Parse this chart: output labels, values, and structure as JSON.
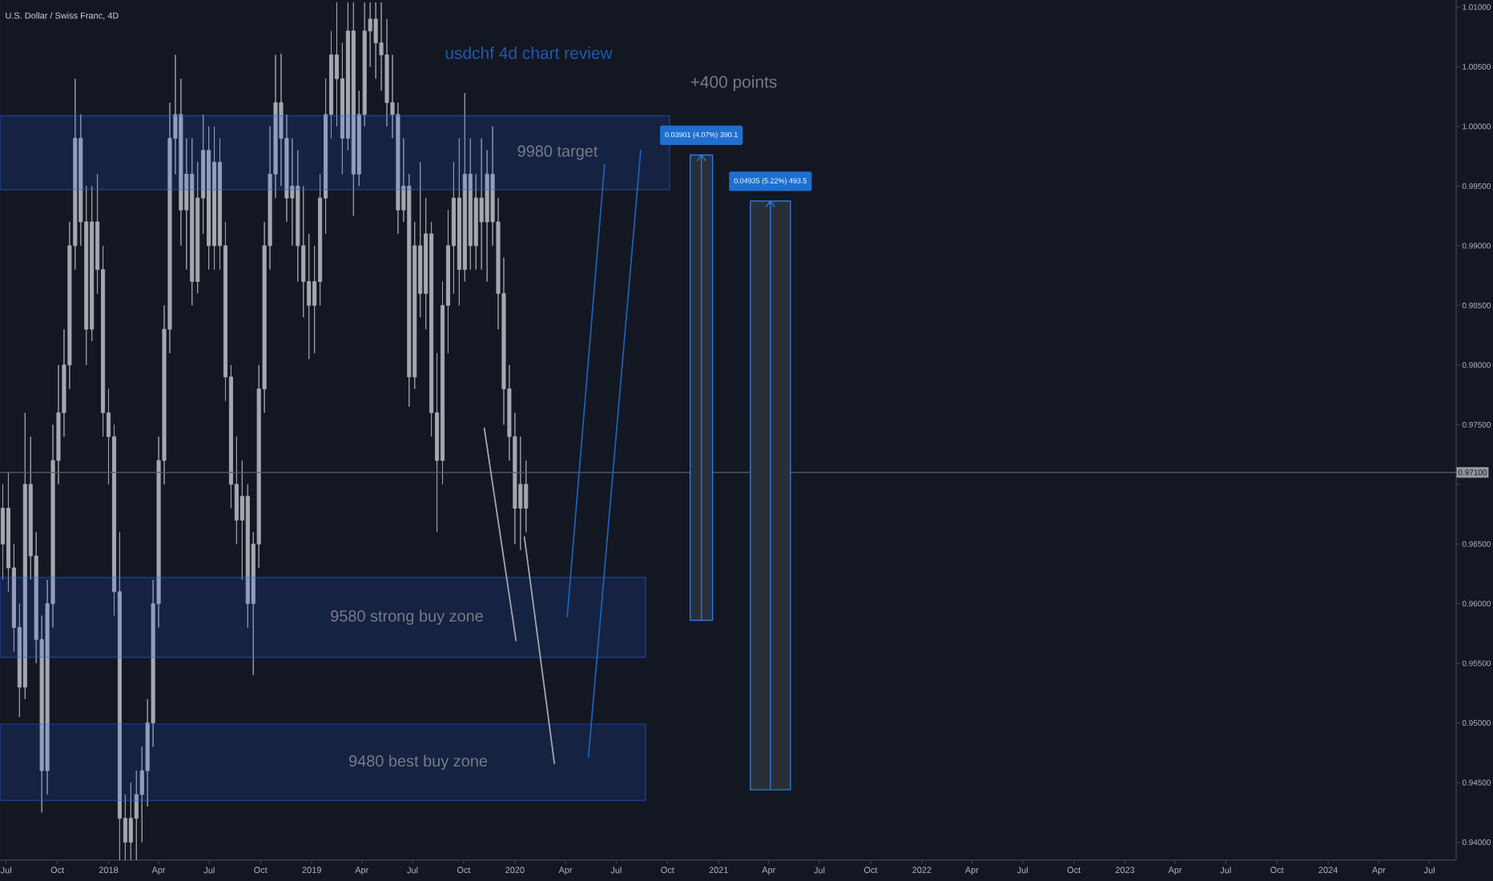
{
  "chart_data": {
    "type": "candlestick",
    "title": "U.S. Dollar / Swiss Franc, 4D",
    "annotations": [
      "usdchf 4d chart review",
      "+400 points"
    ],
    "xlim": [
      "2017-06-20",
      "2024-08-18"
    ],
    "xticks": [
      {
        "value": "2017-07-01",
        "label": "Jul"
      },
      {
        "value": "2017-10-01",
        "label": "Oct"
      },
      {
        "value": "2018-01-01",
        "label": "2018"
      },
      {
        "value": "2018-04-01",
        "label": "Apr"
      },
      {
        "value": "2018-07-01",
        "label": "Jul"
      },
      {
        "value": "2018-10-01",
        "label": "Oct"
      },
      {
        "value": "2019-01-01",
        "label": "2019"
      },
      {
        "value": "2019-04-01",
        "label": "Apr"
      },
      {
        "value": "2019-07-01",
        "label": "Jul"
      },
      {
        "value": "2019-10-01",
        "label": "Oct"
      },
      {
        "value": "2020-01-01",
        "label": "2020"
      },
      {
        "value": "2020-04-01",
        "label": "Apr"
      },
      {
        "value": "2020-07-01",
        "label": "Jul"
      },
      {
        "value": "2020-10-01",
        "label": "Oct"
      },
      {
        "value": "2021-01-01",
        "label": "2021"
      },
      {
        "value": "2021-04-01",
        "label": "Apr"
      },
      {
        "value": "2021-07-01",
        "label": "Jul"
      },
      {
        "value": "2021-10-01",
        "label": "Oct"
      },
      {
        "value": "2022-01-01",
        "label": "2022"
      },
      {
        "value": "2022-04-01",
        "label": "Apr"
      },
      {
        "value": "2022-07-01",
        "label": "Jul"
      },
      {
        "value": "2022-10-01",
        "label": "Oct"
      },
      {
        "value": "2023-01-01",
        "label": "2023"
      },
      {
        "value": "2023-04-01",
        "label": "Apr"
      },
      {
        "value": "2023-07-01",
        "label": "Jul"
      },
      {
        "value": "2023-10-01",
        "label": "Oct"
      },
      {
        "value": "2024-01-01",
        "label": "2024"
      },
      {
        "value": "2024-04-01",
        "label": "Apr"
      },
      {
        "value": "2024-07-01",
        "label": "Jul"
      }
    ],
    "ylim": [
      0.9385,
      1.0106
    ],
    "yticks": [
      {
        "value": 0.94,
        "label": "0.94000"
      },
      {
        "value": 0.945,
        "label": "0.94500"
      },
      {
        "value": 0.95,
        "label": "0.95000"
      },
      {
        "value": 0.955,
        "label": "0.95500"
      },
      {
        "value": 0.96,
        "label": "0.96000"
      },
      {
        "value": 0.965,
        "label": "0.96500"
      },
      {
        "value": 0.97,
        "label": null
      },
      {
        "value": 0.975,
        "label": "0.97500"
      },
      {
        "value": 0.98,
        "label": "0.98000"
      },
      {
        "value": 0.985,
        "label": "0.98500"
      },
      {
        "value": 0.99,
        "label": "0.99000"
      },
      {
        "value": 0.995,
        "label": "0.99500"
      },
      {
        "value": 1.0,
        "label": "1.00000"
      },
      {
        "value": 1.005,
        "label": "1.00500"
      },
      {
        "value": 1.01,
        "label": "1.01000"
      }
    ],
    "ref_lines": [
      {
        "axis": "y",
        "value": 0.971,
        "label": "0.97100",
        "color": "#5d606b"
      }
    ],
    "bands": [
      {
        "axis": "y",
        "from": 0.9947,
        "to": 1.0009,
        "label": "9980 target",
        "color": "#2962ff"
      },
      {
        "axis": "y",
        "from": 0.9555,
        "to": 0.9622,
        "label": "9580 strong buy zone",
        "color": "#2962ff"
      },
      {
        "axis": "y",
        "from": 0.9435,
        "to": 0.9499,
        "label": "9480 best buy zone",
        "color": "#2962ff"
      }
    ],
    "series": [
      {
        "color": "#a5a8b1",
        "x": [
          "2017-06-25",
          "2017-07-05",
          "2017-07-15",
          "2017-07-25",
          "2017-08-04",
          "2017-08-14",
          "2017-08-24",
          "2017-09-03",
          "2017-09-13",
          "2017-09-23",
          "2017-10-03",
          "2017-10-13",
          "2017-10-23",
          "2017-11-02",
          "2017-11-12",
          "2017-11-22",
          "2017-12-02",
          "2017-12-12",
          "2017-12-22",
          "2018-01-01",
          "2018-01-11",
          "2018-01-21",
          "2018-01-31",
          "2018-02-10",
          "2018-02-20",
          "2018-03-02",
          "2018-03-12",
          "2018-03-22",
          "2018-04-01",
          "2018-04-11",
          "2018-04-21",
          "2018-05-01",
          "2018-05-11",
          "2018-05-21",
          "2018-05-31",
          "2018-06-10",
          "2018-06-20",
          "2018-06-30",
          "2018-07-10",
          "2018-07-20",
          "2018-07-30",
          "2018-08-09",
          "2018-08-19",
          "2018-08-29",
          "2018-09-08",
          "2018-09-18",
          "2018-09-28",
          "2018-10-08",
          "2018-10-18",
          "2018-10-28",
          "2018-11-07",
          "2018-11-17",
          "2018-11-27",
          "2018-12-07",
          "2018-12-17",
          "2018-12-27",
          "2019-01-06",
          "2019-01-16",
          "2019-01-26",
          "2019-02-05",
          "2019-02-15",
          "2019-02-25",
          "2019-03-07",
          "2019-03-17",
          "2019-03-27",
          "2019-04-06",
          "2019-04-16",
          "2019-04-26",
          "2019-05-06",
          "2019-05-16",
          "2019-05-26",
          "2019-06-05",
          "2019-06-15",
          "2019-06-25",
          "2019-07-05",
          "2019-07-15",
          "2019-07-25",
          "2019-08-04",
          "2019-08-14",
          "2019-08-24",
          "2019-09-03",
          "2019-09-13",
          "2019-09-23",
          "2019-10-03",
          "2019-10-13",
          "2019-10-23",
          "2019-11-02",
          "2019-11-12",
          "2019-11-22",
          "2019-12-02",
          "2019-12-12",
          "2019-12-22",
          "2020-01-01",
          "2020-01-11",
          "2020-01-21"
        ],
        "ohlc": [
          [
            0.965,
            0.97,
            0.962,
            0.968
          ],
          [
            0.968,
            0.971,
            0.961,
            0.963
          ],
          [
            0.963,
            0.965,
            0.956,
            0.958
          ],
          [
            0.958,
            0.96,
            0.9505,
            0.953
          ],
          [
            0.953,
            0.976,
            0.952,
            0.97
          ],
          [
            0.97,
            0.974,
            0.962,
            0.964
          ],
          [
            0.964,
            0.966,
            0.955,
            0.957
          ],
          [
            0.957,
            0.959,
            0.9425,
            0.946
          ],
          [
            0.946,
            0.962,
            0.944,
            0.96
          ],
          [
            0.96,
            0.975,
            0.958,
            0.972
          ],
          [
            0.972,
            0.98,
            0.97,
            0.976
          ],
          [
            0.976,
            0.983,
            0.974,
            0.98
          ],
          [
            0.98,
            0.992,
            0.978,
            0.99
          ],
          [
            0.99,
            1.004,
            0.988,
            0.999
          ],
          [
            0.999,
            1.001,
            0.99,
            0.992
          ],
          [
            0.992,
            0.995,
            0.98,
            0.983
          ],
          [
            0.983,
            0.995,
            0.982,
            0.992
          ],
          [
            0.992,
            0.996,
            0.986,
            0.988
          ],
          [
            0.988,
            0.99,
            0.974,
            0.976
          ],
          [
            0.976,
            0.978,
            0.97,
            0.974
          ],
          [
            0.974,
            0.975,
            0.959,
            0.961
          ],
          [
            0.961,
            0.966,
            0.9385,
            0.942
          ],
          [
            0.942,
            0.944,
            0.9385,
            0.94
          ],
          [
            0.94,
            0.945,
            0.9385,
            0.942
          ],
          [
            0.942,
            0.946,
            0.9385,
            0.944
          ],
          [
            0.944,
            0.948,
            0.94,
            0.946
          ],
          [
            0.946,
            0.952,
            0.943,
            0.95
          ],
          [
            0.95,
            0.962,
            0.948,
            0.96
          ],
          [
            0.96,
            0.974,
            0.958,
            0.972
          ],
          [
            0.972,
            0.985,
            0.97,
            0.983
          ],
          [
            0.983,
            1.002,
            0.981,
            0.999
          ],
          [
            0.999,
            1.006,
            0.996,
            1.001
          ],
          [
            1.001,
            1.004,
            0.99,
            0.993
          ],
          [
            0.993,
            0.999,
            0.988,
            0.996
          ],
          [
            0.996,
            0.999,
            0.985,
            0.987
          ],
          [
            0.987,
            0.997,
            0.986,
            0.994
          ],
          [
            0.994,
            1.001,
            0.991,
            0.998
          ],
          [
            0.998,
            1.0,
            0.988,
            0.99
          ],
          [
            0.99,
            1.0,
            0.988,
            0.997
          ],
          [
            0.997,
            0.999,
            0.988,
            0.99
          ],
          [
            0.99,
            0.992,
            0.977,
            0.979
          ],
          [
            0.979,
            0.98,
            0.968,
            0.97
          ],
          [
            0.97,
            0.974,
            0.965,
            0.967
          ],
          [
            0.967,
            0.972,
            0.962,
            0.969
          ],
          [
            0.969,
            0.97,
            0.958,
            0.96
          ],
          [
            0.96,
            0.966,
            0.954,
            0.965
          ],
          [
            0.965,
            0.98,
            0.963,
            0.978
          ],
          [
            0.978,
            0.992,
            0.976,
            0.99
          ],
          [
            0.99,
            1.0,
            0.988,
            0.996
          ],
          [
            0.996,
            1.006,
            0.994,
            1.002
          ],
          [
            1.002,
            1.0061,
            0.995,
            0.999
          ],
          [
            0.999,
            1.001,
            0.992,
            0.994
          ],
          [
            0.994,
            0.999,
            0.99,
            0.995
          ],
          [
            0.995,
            0.998,
            0.987,
            0.99
          ],
          [
            0.99,
            0.995,
            0.984,
            0.987
          ],
          [
            0.987,
            0.991,
            0.9805,
            0.985
          ],
          [
            0.985,
            0.99,
            0.981,
            0.987
          ],
          [
            0.987,
            0.996,
            0.985,
            0.994
          ],
          [
            0.994,
            1.004,
            0.991,
            1.001
          ],
          [
            1.001,
            1.008,
            0.999,
            1.006
          ],
          [
            1.006,
            1.0104,
            1.0,
            1.004
          ],
          [
            1.004,
            1.007,
            0.996,
            0.999
          ],
          [
            0.999,
            1.0104,
            0.998,
            1.008
          ],
          [
            1.008,
            1.0104,
            0.9925,
            0.996
          ],
          [
            0.996,
            1.003,
            0.995,
            1.001
          ],
          [
            1.001,
            1.0104,
            1.0,
            1.008
          ],
          [
            1.008,
            1.0104,
            1.005,
            1.009
          ],
          [
            1.009,
            1.0104,
            1.004,
            1.007
          ],
          [
            1.007,
            1.0104,
            1.003,
            1.006
          ],
          [
            1.006,
            1.009,
            1.0,
            1.002
          ],
          [
            1.002,
            1.006,
            0.999,
            1.001
          ],
          [
            1.001,
            1.002,
            0.991,
            0.993
          ],
          [
            0.993,
            0.999,
            0.992,
            0.995
          ],
          [
            0.995,
            0.996,
            0.9765,
            0.979
          ],
          [
            0.979,
            0.992,
            0.978,
            0.99
          ],
          [
            0.99,
            0.997,
            0.984,
            0.986
          ],
          [
            0.986,
            0.994,
            0.983,
            0.991
          ],
          [
            0.991,
            0.992,
            0.974,
            0.976
          ],
          [
            0.976,
            0.981,
            0.966,
            0.972
          ],
          [
            0.972,
            0.987,
            0.97,
            0.985
          ],
          [
            0.985,
            0.993,
            0.981,
            0.99
          ],
          [
            0.99,
            0.997,
            0.986,
            0.994
          ],
          [
            0.994,
            0.999,
            0.985,
            0.988
          ],
          [
            0.988,
            1.0028,
            0.987,
            0.996
          ],
          [
            0.996,
            0.999,
            0.988,
            0.99
          ],
          [
            0.99,
            0.996,
            0.988,
            0.994
          ],
          [
            0.994,
            0.999,
            0.988,
            0.992
          ],
          [
            0.992,
            0.998,
            0.987,
            0.996
          ],
          [
            0.996,
            1.0,
            0.99,
            0.992
          ],
          [
            0.992,
            0.994,
            0.983,
            0.986
          ],
          [
            0.986,
            0.989,
            0.975,
            0.978
          ],
          [
            0.978,
            0.98,
            0.972,
            0.974
          ],
          [
            0.974,
            0.976,
            0.965,
            0.968
          ],
          [
            0.968,
            0.974,
            0.9645,
            0.97
          ],
          [
            0.97,
            0.972,
            0.966,
            0.968
          ]
        ]
      },
      {
        "type": "bar",
        "color": "#2a2e39",
        "x": [
          "2020-12-01",
          "2021-04-04"
        ],
        "base": [
          0.9586,
          0.9444
        ],
        "values": [
          0.03901,
          0.04935
        ],
        "value_labels": [
          "0.03901 (4.07%) 390.1",
          "0.04935 (5.22%) 493.5"
        ]
      },
      {
        "type": "line",
        "color": "#1d5fb4",
        "x": [
          "2020-04-04",
          "2020-06-10"
        ],
        "values": [
          0.9589,
          0.9968
        ]
      },
      {
        "type": "line",
        "color": "#1d5fb4",
        "x": [
          "2020-05-12",
          "2020-08-14"
        ],
        "values": [
          0.9471,
          0.998
        ]
      },
      {
        "type": "line",
        "color": "#a3a6af",
        "x": [
          "2019-11-07",
          "2020-01-03"
        ],
        "values": [
          0.9747,
          0.9569
        ]
      },
      {
        "type": "line",
        "color": "#a3a6af",
        "x": [
          "2020-01-18",
          "2020-03-12"
        ],
        "values": [
          0.9656,
          0.9466
        ]
      }
    ]
  }
}
